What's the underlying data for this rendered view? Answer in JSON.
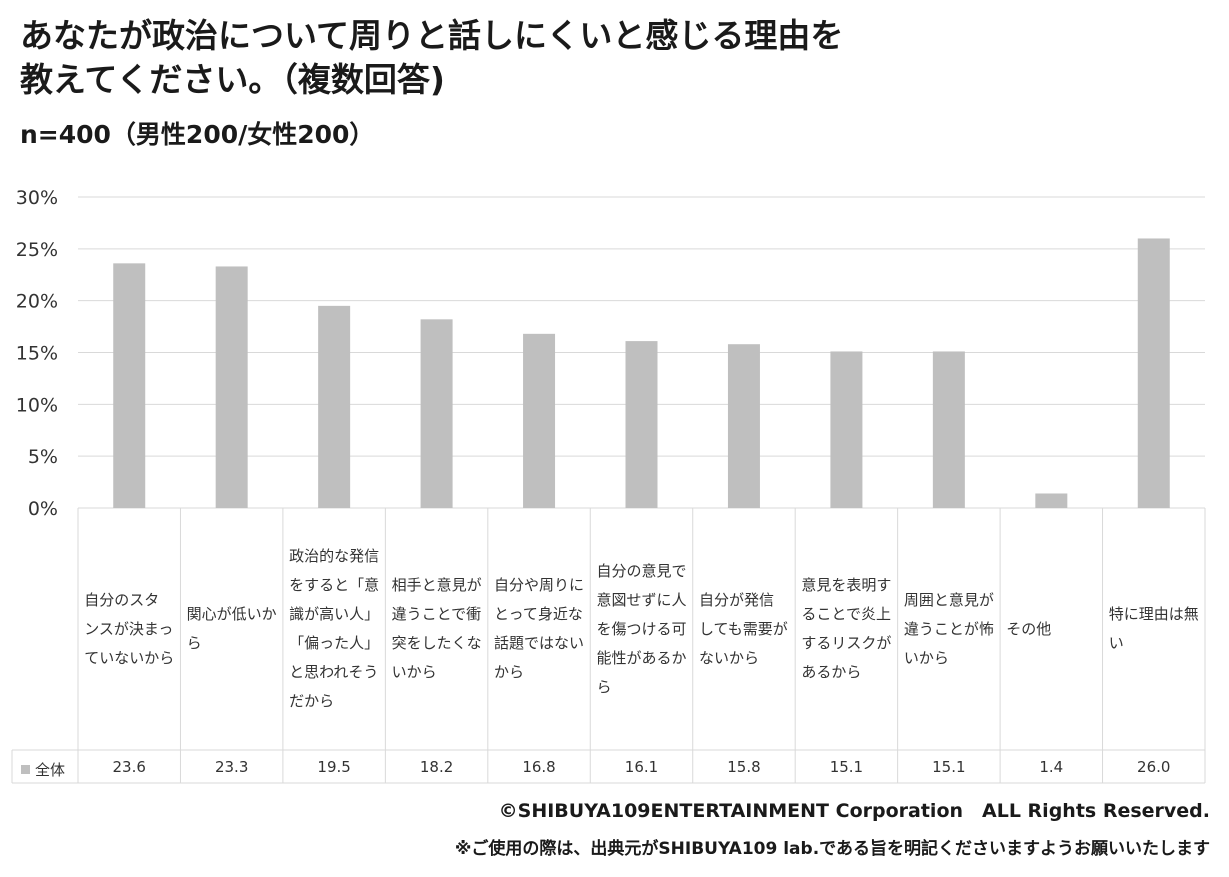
{
  "title_line1": "あなたが政治について周りと話しにくいと感じる理由を",
  "title_line2": "教えてください。（複数回答)",
  "subtitle": "n=400（男性200/女性200）",
  "footer_copyright": "©SHIBUYA109ENTERTAINMENT Corporation　ALL Rights Reserved.",
  "footer_note": "※ご使用の際は、出典元がSHIBUYA109 lab.である旨を明記くださいますようお願いいたします",
  "colors": {
    "bar": "#bfbfbf",
    "grid": "#d9d9d9",
    "text": "#333333"
  },
  "chart_data": {
    "type": "bar",
    "categories": [
      "自分のスタンスが決まっていないから",
      "関心が低いから",
      "政治的な発信をすると「意識が高い人」「偏った人」と思われそうだから",
      "相手と意見が違うことで衝突をしたくないから",
      "自分や周りにとって身近な話題ではないから",
      "自分の意見で意図せずに人を傷つける可能性があるから",
      "自分が発信しても需要がないから",
      "意見を表明することで炎上するリスクがあるから",
      "周囲と意見が違うことが怖いから",
      "その他",
      "特に理由は無い"
    ],
    "series": [
      {
        "name": "全体",
        "values": [
          23.6,
          23.3,
          19.5,
          18.2,
          16.8,
          16.1,
          15.8,
          15.1,
          15.1,
          1.4,
          26.0
        ],
        "labels": [
          "23.6",
          "23.3",
          "19.5",
          "18.2",
          "16.8",
          "16.1",
          "15.8",
          "15.1",
          "15.1",
          "1.4",
          "26.0"
        ]
      }
    ],
    "yticks": [
      "0%",
      "5%",
      "10%",
      "15%",
      "20%",
      "25%",
      "30%"
    ],
    "ylim": [
      0,
      30
    ],
    "grid": true,
    "legend": "data-table"
  }
}
